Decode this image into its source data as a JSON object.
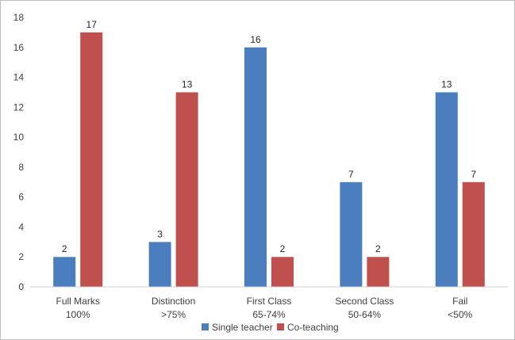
{
  "chart_data": {
    "type": "bar",
    "title": "",
    "xlabel": "",
    "ylabel": "",
    "ylim": [
      0,
      18
    ],
    "yticks": [
      0,
      2,
      4,
      6,
      8,
      10,
      12,
      14,
      16,
      18
    ],
    "grid": false,
    "legend_position": "bottom",
    "categories": [
      [
        "Full Marks",
        "100%"
      ],
      [
        "Distinction",
        ">75%"
      ],
      [
        "First Class",
        "65-74%"
      ],
      [
        "Second Class",
        "50-64%"
      ],
      [
        "Fail",
        "<50%"
      ]
    ],
    "series": [
      {
        "name": "Single teacher",
        "color": "#4a7ebf",
        "values": [
          2,
          3,
          16,
          7,
          13
        ]
      },
      {
        "name": "Co-teaching",
        "color": "#c0504d",
        "values": [
          17,
          13,
          2,
          2,
          7
        ]
      }
    ]
  }
}
